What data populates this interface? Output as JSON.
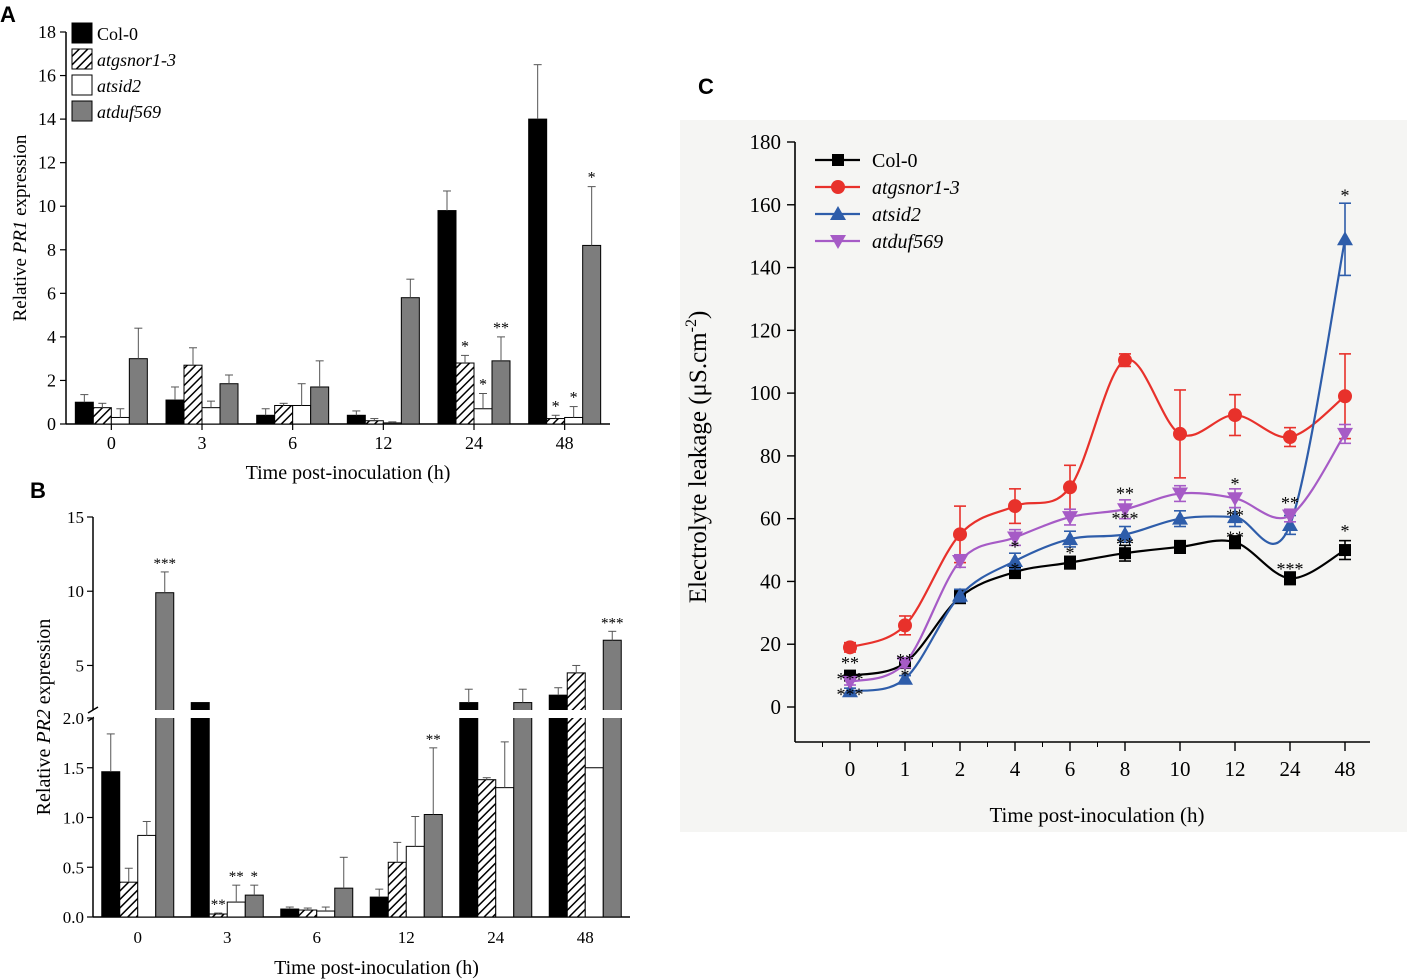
{
  "panels": {
    "A": {
      "letter": "A",
      "chart_data": {
        "type": "bar",
        "title": "",
        "xlabel": "Time post-inoculation (h)",
        "ylabel_parts": [
          "Relative ",
          "PR1",
          " expression"
        ],
        "ylim": [
          0,
          18
        ],
        "yticks": [
          0,
          2,
          4,
          6,
          8,
          10,
          12,
          14,
          16,
          18
        ],
        "categories": [
          "0",
          "3",
          "6",
          "12",
          "24",
          "48"
        ],
        "series": [
          {
            "name": "Col-0",
            "fill": "solid-black",
            "values": [
              1.0,
              1.1,
              0.4,
              0.4,
              9.8,
              14.0
            ],
            "errors": [
              0.35,
              0.6,
              0.3,
              0.2,
              0.9,
              2.5
            ],
            "marks": [
              "",
              "",
              "",
              "",
              "",
              ""
            ]
          },
          {
            "name": "atgsnor1-3",
            "fill": "hatched",
            "values": [
              0.75,
              2.7,
              0.85,
              0.15,
              2.8,
              0.25
            ],
            "errors": [
              0.2,
              0.8,
              0.1,
              0.1,
              0.35,
              0.15
            ],
            "marks": [
              "",
              "",
              "",
              "",
              "*",
              "*"
            ]
          },
          {
            "name": "atsid2",
            "fill": "white",
            "values": [
              0.3,
              0.75,
              0.85,
              0.05,
              0.7,
              0.3
            ],
            "errors": [
              0.4,
              0.3,
              1.0,
              0.05,
              0.7,
              0.5
            ],
            "marks": [
              "",
              "",
              "",
              "",
              "*",
              "*"
            ]
          },
          {
            "name": "atduf569",
            "fill": "grey",
            "values": [
              3.0,
              1.85,
              1.7,
              5.8,
              2.9,
              8.2
            ],
            "errors": [
              1.4,
              0.4,
              1.2,
              0.85,
              1.1,
              2.7
            ],
            "marks": [
              "",
              "",
              "",
              "",
              "**",
              "*"
            ]
          }
        ],
        "legend_position": "top-left"
      }
    },
    "B": {
      "letter": "B",
      "chart_data": {
        "type": "bar",
        "title": "",
        "xlabel": "Time post-inoculation (h)",
        "ylabel_parts": [
          "Relative ",
          "PR2",
          " expression"
        ],
        "y_axis_break": [
          2.0,
          2.0
        ],
        "ylim_lower": [
          0,
          2.0
        ],
        "ylim_upper": [
          2.0,
          15
        ],
        "yticks_lower": [
          "0.0",
          "0.5",
          "1.0",
          "1.5",
          "2.0"
        ],
        "yticks_upper": [
          "5",
          "10",
          "15"
        ],
        "categories": [
          "0",
          "3",
          "6",
          "12",
          "24",
          "48"
        ],
        "series": [
          {
            "name": "Col-0",
            "fill": "solid-black",
            "values": [
              1.46,
              2.5,
              0.08,
              0.2,
              2.5,
              3.0
            ],
            "errors": [
              0.38,
              0,
              0.02,
              0.08,
              0.9,
              0.5
            ],
            "marks": [
              "",
              "",
              "",
              "",
              "",
              ""
            ]
          },
          {
            "name": "atgsnor1-3",
            "fill": "hatched",
            "values": [
              0.35,
              0.03,
              0.07,
              0.55,
              1.38,
              4.5
            ],
            "errors": [
              0.14,
              0.01,
              0.02,
              0.2,
              0.02,
              0.5
            ],
            "marks": [
              "",
              "**",
              "",
              "",
              "",
              ""
            ]
          },
          {
            "name": "atsid2",
            "fill": "white",
            "values": [
              0.82,
              0.15,
              0.06,
              0.71,
              1.3,
              1.5
            ],
            "errors": [
              0.14,
              0.17,
              0.04,
              0.3,
              0.46,
              0
            ],
            "marks": [
              "",
              "**",
              "",
              "",
              "",
              ""
            ]
          },
          {
            "name": "atduf569",
            "fill": "grey",
            "values": [
              9.9,
              0.22,
              0.29,
              1.03,
              2.5,
              6.7
            ],
            "errors": [
              1.4,
              0.1,
              0.31,
              0.67,
              0.9,
              0.6
            ],
            "marks": [
              "***",
              "*",
              "",
              "**",
              "",
              "***"
            ]
          }
        ]
      }
    },
    "C": {
      "letter": "C",
      "chart_data": {
        "type": "line",
        "title": "",
        "xlabel": "Time post-inoculation (h)",
        "ylabel": "Electrolyte leakage (μS.cm",
        "ylabel_sup": "-2",
        "ylabel_close": ")",
        "ylim": [
          0,
          180
        ],
        "yticks": [
          0,
          20,
          40,
          60,
          80,
          100,
          120,
          140,
          160,
          180
        ],
        "categories": [
          "0",
          "1",
          "2",
          "4",
          "6",
          "8",
          "10",
          "12",
          "24",
          "48"
        ],
        "series": [
          {
            "name": "Col-0",
            "color": "#000000",
            "marker": "square",
            "values": [
              10,
              14,
              35,
              43,
              46,
              49,
              51,
              52.5,
              41,
              50
            ],
            "errors": [
              1,
              1.5,
              2,
              2,
              2,
              2.5,
              2,
              2,
              2,
              3
            ]
          },
          {
            "name": "atgsnor1-3",
            "color": "#e8312b",
            "marker": "circle",
            "values": [
              19,
              26,
              55,
              64,
              70,
              110.5,
              87,
              93,
              86,
              99
            ],
            "errors": [
              1.5,
              3,
              9,
              5.5,
              7,
              2,
              14,
              6.5,
              3,
              13.5
            ]
          },
          {
            "name": "atsid2",
            "color": "#2e5daa",
            "marker": "triangle-up",
            "values": [
              5,
              9,
              35.5,
              46.5,
              53.5,
              55,
              60,
              60.5,
              58,
              149
            ],
            "errors": [
              1,
              1,
              2,
              2.5,
              2.5,
              2.5,
              2.5,
              3,
              3,
              11.5
            ]
          },
          {
            "name": "atduf569",
            "color": "#a65bc6",
            "marker": "triangle-down",
            "values": [
              8,
              14,
              46.5,
              54,
              60.5,
              63,
              68,
              66.5,
              61,
              87
            ],
            "errors": [
              1,
              1.5,
              2,
              2.5,
              2.5,
              3,
              2.5,
              3,
              2,
              3
            ]
          }
        ],
        "annotations": [
          {
            "cat": "0",
            "text": "**",
            "y": 14
          },
          {
            "cat": "0",
            "text": "***",
            "y": 9
          },
          {
            "cat": "0",
            "text": "***",
            "y": 4
          },
          {
            "cat": "1",
            "text": "**",
            "y": 15
          },
          {
            "cat": "1",
            "text": "*",
            "y": 10
          },
          {
            "cat": "4",
            "text": "*",
            "y": 51
          },
          {
            "cat": "4",
            "text": "*",
            "y": 44
          },
          {
            "cat": "6",
            "text": "*",
            "y": 49
          },
          {
            "cat": "8",
            "text": "**",
            "y": 68
          },
          {
            "cat": "8",
            "text": "***",
            "y": 60
          },
          {
            "cat": "8",
            "text": "**",
            "y": 52
          },
          {
            "cat": "12",
            "text": "*",
            "y": 71
          },
          {
            "cat": "12",
            "text": "**",
            "y": 61
          },
          {
            "cat": "12",
            "text": "**",
            "y": 54
          },
          {
            "cat": "24",
            "text": "**",
            "y": 65
          },
          {
            "cat": "24",
            "text": "***",
            "y": 44
          },
          {
            "cat": "48",
            "text": "*",
            "y": 163
          },
          {
            "cat": "48",
            "text": "*",
            "y": 56
          }
        ],
        "legend_position": "top-left"
      }
    }
  }
}
